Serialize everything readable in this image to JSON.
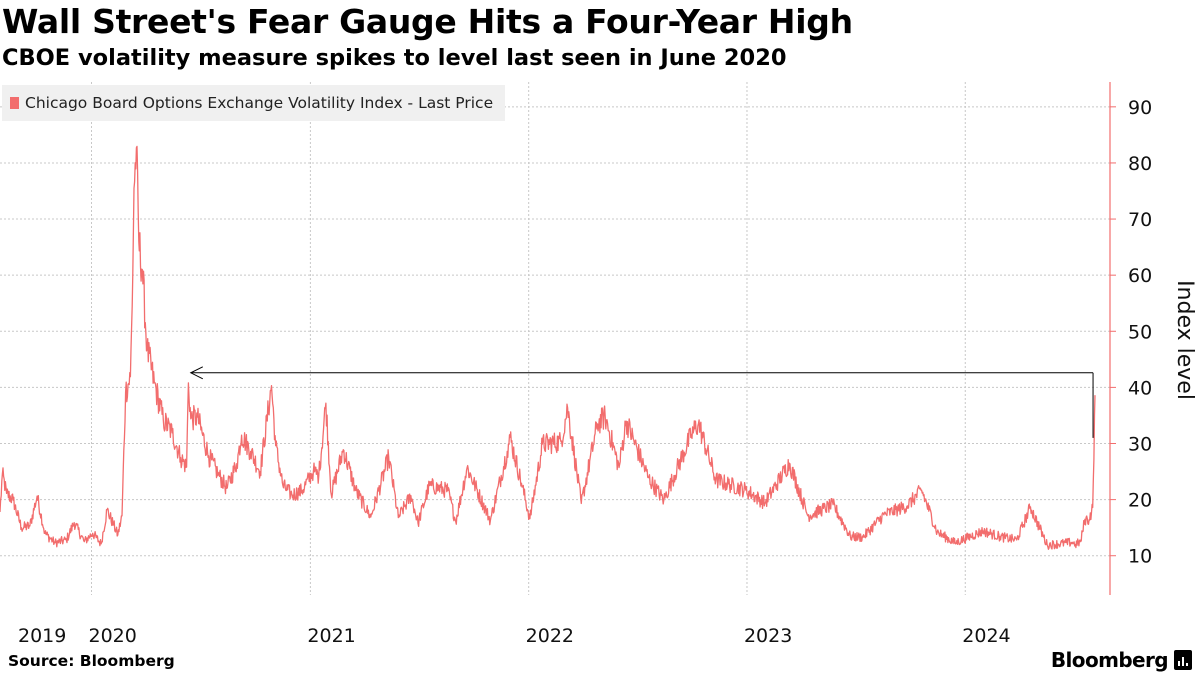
{
  "header": {
    "title": "Wall Street's Fear Gauge Hits a Four-Year High",
    "subtitle": "CBOE volatility measure spikes to level last seen in June 2020"
  },
  "footer": {
    "source": "Source: Bloomberg",
    "brand": "Bloomberg"
  },
  "colors": {
    "series": "#f26d6d",
    "grid": "#c8c8c8",
    "legend_bg": "#f0f0f0",
    "arrow": "#000000"
  },
  "chart_data": {
    "type": "line",
    "title": "Wall Street's Fear Gauge Hits a Four-Year High",
    "subtitle": "CBOE volatility measure spikes to level last seen in June 2020",
    "ylabel": "Index level",
    "xlabel": "",
    "y_axis_side": "right",
    "ylim": [
      3,
      93
    ],
    "yticks": [
      10,
      20,
      30,
      40,
      50,
      60,
      70,
      80,
      90
    ],
    "xlim": [
      "2019-08-01",
      "2024-08-30"
    ],
    "xticks": [
      {
        "label": "2019",
        "date": "2019-08-01"
      },
      {
        "label": "2020",
        "date": "2020-01-01"
      },
      {
        "label": "2021",
        "date": "2021-01-01"
      },
      {
        "label": "2022",
        "date": "2022-01-01"
      },
      {
        "label": "2023",
        "date": "2023-01-01"
      },
      {
        "label": "2024",
        "date": "2024-01-01"
      }
    ],
    "grid": true,
    "legend_position": "top-left",
    "series": [
      {
        "name": "Chicago Board Options Exchange Volatility Index - Last Price",
        "color": "#f26d6d",
        "points": [
          [
            "2019-08-01",
            17.8
          ],
          [
            "2019-08-05",
            24.6
          ],
          [
            "2019-08-12",
            21.1
          ],
          [
            "2019-08-23",
            19.9
          ],
          [
            "2019-09-06",
            15.0
          ],
          [
            "2019-09-20",
            15.3
          ],
          [
            "2019-10-02",
            20.6
          ],
          [
            "2019-10-15",
            14.0
          ],
          [
            "2019-11-01",
            12.3
          ],
          [
            "2019-11-20",
            12.8
          ],
          [
            "2019-12-03",
            15.9
          ],
          [
            "2019-12-20",
            12.5
          ],
          [
            "2020-01-03",
            14.0
          ],
          [
            "2020-01-17",
            12.1
          ],
          [
            "2020-01-27",
            18.2
          ],
          [
            "2020-02-07",
            15.5
          ],
          [
            "2020-02-14",
            13.7
          ],
          [
            "2020-02-21",
            17.1
          ],
          [
            "2020-02-27",
            39.2
          ],
          [
            "2020-03-06",
            41.9
          ],
          [
            "2020-03-09",
            54.5
          ],
          [
            "2020-03-12",
            75.5
          ],
          [
            "2020-03-16",
            82.7
          ],
          [
            "2020-03-20",
            66.0
          ],
          [
            "2020-03-26",
            61.0
          ],
          [
            "2020-04-03",
            46.8
          ],
          [
            "2020-04-15",
            40.8
          ],
          [
            "2020-04-30",
            34.2
          ],
          [
            "2020-05-15",
            31.9
          ],
          [
            "2020-05-29",
            27.5
          ],
          [
            "2020-06-08",
            25.8
          ],
          [
            "2020-06-11",
            40.8
          ],
          [
            "2020-06-15",
            34.4
          ],
          [
            "2020-06-26",
            34.7
          ],
          [
            "2020-07-15",
            27.8
          ],
          [
            "2020-07-31",
            24.5
          ],
          [
            "2020-08-14",
            22.0
          ],
          [
            "2020-08-31",
            26.4
          ],
          [
            "2020-09-08",
            31.5
          ],
          [
            "2020-09-23",
            28.6
          ],
          [
            "2020-10-09",
            25.0
          ],
          [
            "2020-10-28",
            40.3
          ],
          [
            "2020-11-04",
            29.6
          ],
          [
            "2020-11-16",
            22.5
          ],
          [
            "2020-12-01",
            20.8
          ],
          [
            "2020-12-18",
            21.6
          ],
          [
            "2021-01-06",
            25.1
          ],
          [
            "2021-01-15",
            24.3
          ],
          [
            "2021-01-27",
            37.2
          ],
          [
            "2021-02-05",
            20.9
          ],
          [
            "2021-02-25",
            28.9
          ],
          [
            "2021-03-18",
            21.6
          ],
          [
            "2021-04-12",
            16.9
          ],
          [
            "2021-05-12",
            27.6
          ],
          [
            "2021-05-28",
            16.8
          ],
          [
            "2021-06-18",
            20.7
          ],
          [
            "2021-06-30",
            15.8
          ],
          [
            "2021-07-19",
            22.5
          ],
          [
            "2021-08-19",
            21.6
          ],
          [
            "2021-09-01",
            16.1
          ],
          [
            "2021-09-20",
            25.7
          ],
          [
            "2021-10-29",
            16.3
          ],
          [
            "2021-11-26",
            28.6
          ],
          [
            "2021-12-01",
            31.1
          ],
          [
            "2021-12-20",
            22.9
          ],
          [
            "2022-01-03",
            16.6
          ],
          [
            "2022-01-24",
            29.9
          ],
          [
            "2022-02-24",
            30.3
          ],
          [
            "2022-03-07",
            36.4
          ],
          [
            "2022-03-30",
            19.3
          ],
          [
            "2022-04-26",
            33.5
          ],
          [
            "2022-05-09",
            34.8
          ],
          [
            "2022-06-01",
            25.7
          ],
          [
            "2022-06-13",
            34.0
          ],
          [
            "2022-07-20",
            23.9
          ],
          [
            "2022-08-15",
            19.9
          ],
          [
            "2022-09-30",
            31.6
          ],
          [
            "2022-10-12",
            33.6
          ],
          [
            "2022-11-10",
            23.5
          ],
          [
            "2022-12-30",
            21.7
          ],
          [
            "2023-01-31",
            19.4
          ],
          [
            "2023-03-13",
            26.5
          ],
          [
            "2023-04-13",
            17.1
          ],
          [
            "2023-05-25",
            19.1
          ],
          [
            "2023-06-23",
            13.4
          ],
          [
            "2023-07-14",
            13.3
          ],
          [
            "2023-08-18",
            17.3
          ],
          [
            "2023-09-26",
            18.9
          ],
          [
            "2023-10-20",
            21.7
          ],
          [
            "2023-11-15",
            14.2
          ],
          [
            "2023-12-15",
            12.3
          ],
          [
            "2024-01-31",
            14.4
          ],
          [
            "2024-02-28",
            13.4
          ],
          [
            "2024-03-27",
            12.8
          ],
          [
            "2024-04-19",
            18.7
          ],
          [
            "2024-05-17",
            11.9
          ],
          [
            "2024-06-28",
            12.4
          ],
          [
            "2024-07-03",
            12.0
          ],
          [
            "2024-07-12",
            12.5
          ],
          [
            "2024-07-19",
            16.5
          ],
          [
            "2024-07-26",
            16.4
          ],
          [
            "2024-08-01",
            18.6
          ],
          [
            "2024-08-02",
            23.4
          ],
          [
            "2024-08-05",
            38.6
          ]
        ]
      }
    ],
    "annotations": [
      {
        "type": "arrow",
        "from": [
          "2024-08-05",
          42.6
        ],
        "to": [
          "2020-06-15",
          42.6
        ]
      }
    ]
  }
}
